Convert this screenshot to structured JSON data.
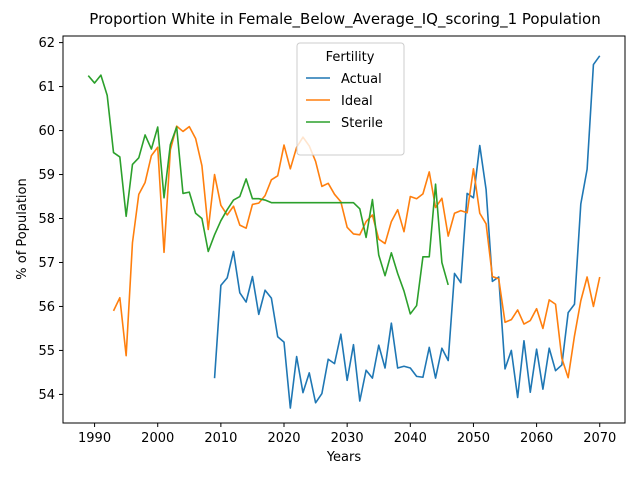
{
  "chart_data": {
    "type": "line",
    "title": "Proportion White in Female_Below_Average_IQ_scoring_1 Population",
    "xlabel": "Years",
    "ylabel": "% of Population",
    "xlim": [
      1985,
      2074
    ],
    "ylim": [
      53.35,
      62.15
    ],
    "xticks": [
      1990,
      2000,
      2010,
      2020,
      2030,
      2040,
      2050,
      2060,
      2070
    ],
    "yticks": [
      54,
      55,
      56,
      57,
      58,
      59,
      60,
      61,
      62
    ],
    "grid": false,
    "legend": {
      "title": "Fertility",
      "position": "top-center"
    },
    "series": [
      {
        "name": "Actual",
        "color": "#1f77b4",
        "x": [
          2009,
          2010,
          2011,
          2012,
          2013,
          2014,
          2015,
          2016,
          2017,
          2018,
          2019,
          2020,
          2021,
          2022,
          2023,
          2024,
          2025,
          2026,
          2027,
          2028,
          2029,
          2030,
          2031,
          2032,
          2033,
          2034,
          2035,
          2036,
          2037,
          2038,
          2039,
          2040,
          2041,
          2042,
          2043,
          2044,
          2045,
          2046,
          2047,
          2048,
          2049,
          2050,
          2051,
          2052,
          2053,
          2054,
          2055,
          2056,
          2057,
          2058,
          2059,
          2060,
          2061,
          2062,
          2063,
          2064,
          2065,
          2066,
          2067,
          2068,
          2069,
          2070
        ],
        "values": [
          54.37,
          56.48,
          56.65,
          57.25,
          56.31,
          56.1,
          56.68,
          55.82,
          56.37,
          56.19,
          55.31,
          55.19,
          53.69,
          54.86,
          54.04,
          54.49,
          53.81,
          54.02,
          54.8,
          54.7,
          55.37,
          54.32,
          55.13,
          53.85,
          54.55,
          54.37,
          55.12,
          54.6,
          55.62,
          54.6,
          54.64,
          54.6,
          54.41,
          54.39,
          55.07,
          54.37,
          55.05,
          54.77,
          56.75,
          56.54,
          58.57,
          58.47,
          59.66,
          58.66,
          56.57,
          56.67,
          54.58,
          55.0,
          53.93,
          55.22,
          54.05,
          55.03,
          54.12,
          55.05,
          54.54,
          54.67,
          55.86,
          56.05,
          58.33,
          59.12,
          61.5,
          61.7
        ]
      },
      {
        "name": "Ideal",
        "color": "#ff7f0e",
        "x": [
          1993,
          1994,
          1995,
          1996,
          1997,
          1998,
          1999,
          2000,
          2001,
          2002,
          2003,
          2004,
          2005,
          2006,
          2007,
          2008,
          2009,
          2010,
          2011,
          2012,
          2013,
          2014,
          2015,
          2016,
          2017,
          2018,
          2019,
          2020,
          2021,
          2022,
          2023,
          2024,
          2025,
          2026,
          2027,
          2028,
          2029,
          2030,
          2031,
          2032,
          2033,
          2034,
          2035,
          2036,
          2037,
          2038,
          2039,
          2040,
          2041,
          2042,
          2043,
          2044,
          2045,
          2046,
          2047,
          2048,
          2049,
          2050,
          2051,
          2052,
          2053,
          2054,
          2055,
          2056,
          2057,
          2058,
          2059,
          2060,
          2061,
          2062,
          2063,
          2064,
          2065,
          2066,
          2067,
          2068,
          2069,
          2070
        ],
        "values": [
          55.9,
          56.2,
          54.88,
          57.45,
          58.55,
          58.82,
          59.43,
          59.62,
          57.23,
          59.56,
          60.1,
          59.98,
          60.09,
          59.82,
          59.2,
          57.75,
          59.0,
          58.3,
          58.08,
          58.28,
          57.85,
          57.78,
          58.32,
          58.35,
          58.52,
          58.88,
          58.97,
          59.67,
          59.13,
          59.62,
          59.85,
          59.65,
          59.3,
          58.73,
          58.8,
          58.55,
          58.38,
          57.8,
          57.65,
          57.63,
          57.93,
          58.08,
          57.53,
          57.43,
          57.93,
          58.2,
          57.7,
          58.5,
          58.45,
          58.56,
          59.06,
          58.25,
          58.46,
          57.6,
          58.12,
          58.18,
          58.13,
          59.13,
          58.12,
          57.88,
          56.68,
          56.63,
          55.64,
          55.7,
          55.92,
          55.6,
          55.68,
          55.95,
          55.5,
          56.15,
          56.05,
          54.82,
          54.38,
          55.33,
          56.13,
          56.67,
          56.0,
          56.67
        ]
      },
      {
        "name": "Sterile",
        "color": "#2ca02c",
        "x": [
          1989,
          1990,
          1991,
          1992,
          1993,
          1994,
          1995,
          1996,
          1997,
          1998,
          1999,
          2000,
          2001,
          2002,
          2003,
          2004,
          2005,
          2006,
          2007,
          2008,
          2009,
          2010,
          2011,
          2012,
          2013,
          2014,
          2015,
          2016,
          2017,
          2018,
          2019,
          2020,
          2021,
          2022,
          2023,
          2024,
          2025,
          2026,
          2027,
          2028,
          2029,
          2030,
          2031,
          2032,
          2033,
          2034,
          2035,
          2036,
          2037,
          2038,
          2039,
          2040,
          2041,
          2042,
          2043,
          2044,
          2045,
          2046
        ],
        "values": [
          61.25,
          61.08,
          61.26,
          60.8,
          59.5,
          59.4,
          58.05,
          59.23,
          59.38,
          59.9,
          59.58,
          60.08,
          58.47,
          59.68,
          60.08,
          58.57,
          58.6,
          58.12,
          58.0,
          57.25,
          57.63,
          57.95,
          58.2,
          58.42,
          58.5,
          58.9,
          58.45,
          58.45,
          58.42,
          58.36,
          58.36,
          58.36,
          58.36,
          58.36,
          58.36,
          58.36,
          58.36,
          58.36,
          58.36,
          58.36,
          58.36,
          58.36,
          58.36,
          58.22,
          57.57,
          58.43,
          57.17,
          56.7,
          57.22,
          56.75,
          56.35,
          55.83,
          56.02,
          57.13,
          57.13,
          58.78,
          57.0,
          56.49
        ]
      }
    ]
  }
}
